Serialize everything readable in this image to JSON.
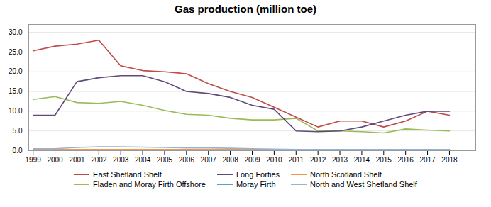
{
  "chart_data": {
    "type": "line",
    "title": "Gas production (million toe)",
    "x": [
      1999,
      2000,
      2001,
      2002,
      2003,
      2004,
      2005,
      2006,
      2007,
      2008,
      2009,
      2010,
      2011,
      2012,
      2013,
      2014,
      2015,
      2016,
      2017,
      2018
    ],
    "series": [
      {
        "name": "East Shetland Shelf",
        "color": "#BE4B48",
        "values": [
          25.3,
          26.5,
          27.0,
          28.0,
          21.5,
          20.3,
          20.0,
          19.5,
          17.0,
          15.0,
          13.5,
          11.0,
          8.5,
          6.0,
          7.5,
          7.5,
          6.0,
          7.5,
          10.0,
          9.0
        ]
      },
      {
        "name": "Fladen and Moray Firth Offshore",
        "color": "#9BBB59",
        "values": [
          13.0,
          13.7,
          12.2,
          12.0,
          12.5,
          11.5,
          10.2,
          9.2,
          9.0,
          8.2,
          7.8,
          7.8,
          8.2,
          5.0,
          5.0,
          4.8,
          4.5,
          5.5,
          5.2,
          5.0
        ]
      },
      {
        "name": "Long Forties",
        "color": "#604A7B",
        "values": [
          9.0,
          9.0,
          17.5,
          18.5,
          19.0,
          19.0,
          17.5,
          15.0,
          14.5,
          13.5,
          11.5,
          10.5,
          5.0,
          4.8,
          5.0,
          6.0,
          7.5,
          9.0,
          10.0,
          10.0
        ]
      },
      {
        "name": "Moray Firth",
        "color": "#4AABC5",
        "values": [
          0.2,
          0.2,
          0.2,
          0.2,
          0.2,
          0.2,
          0.2,
          0.2,
          0.2,
          0.2,
          0.2,
          0.2,
          0.1,
          0.1,
          0.1,
          0.1,
          0.1,
          0.1,
          0.1,
          0.1
        ]
      },
      {
        "name": "North Scotland Shelf",
        "color": "#F79646",
        "values": [
          0.3,
          0.3,
          0.3,
          0.3,
          0.3,
          0.3,
          0.3,
          0.3,
          0.3,
          0.3,
          0.3,
          0.3,
          0.3,
          0.3,
          0.3,
          0.3,
          0.3,
          0.3,
          0.3,
          0.3
        ]
      },
      {
        "name": "North and West Shetland Shelf",
        "color": "#95B3D7",
        "values": [
          0.5,
          0.5,
          0.8,
          1.0,
          1.0,
          0.9,
          0.8,
          0.7,
          0.7,
          0.6,
          0.5,
          0.4,
          0.3,
          0.3,
          0.3,
          0.3,
          0.3,
          0.3,
          0.3,
          0.3
        ]
      }
    ],
    "xlim": [
      1998.8,
      2019.2
    ],
    "xticks": [
      1999,
      2000,
      2001,
      2002,
      2003,
      2004,
      2005,
      2006,
      2007,
      2008,
      2009,
      2010,
      2011,
      2012,
      2013,
      2014,
      2015,
      2016,
      2017,
      2018
    ],
    "ylim": [
      0.0,
      32.0
    ],
    "yticks": [
      {
        "value": 0,
        "label": "0.0"
      },
      {
        "value": 5,
        "label": "5.0"
      },
      {
        "value": 10,
        "label": "10.0"
      },
      {
        "value": 15,
        "label": "15.0"
      },
      {
        "value": 20,
        "label": "20.0"
      },
      {
        "value": 25,
        "label": "25.0"
      },
      {
        "value": 30,
        "label": "30.0"
      }
    ],
    "grid": "y",
    "legend": "bottom"
  }
}
